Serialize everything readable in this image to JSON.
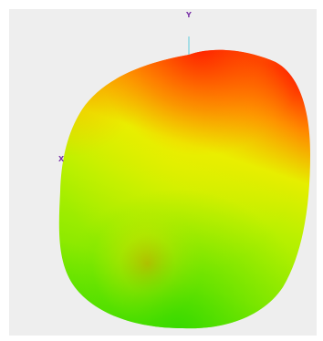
{
  "viewport": {
    "background": "#eeeeee"
  },
  "axes": {
    "y_label": "Y",
    "x_label": "X",
    "label_color": "#7a33a8",
    "y_axis_color": "#7fd4e0"
  },
  "surface": {
    "description_colors": {
      "hot": "#ff2a00",
      "warm": "#ff9a00",
      "mid": "#d8f000",
      "cool": "#4fe000"
    }
  }
}
